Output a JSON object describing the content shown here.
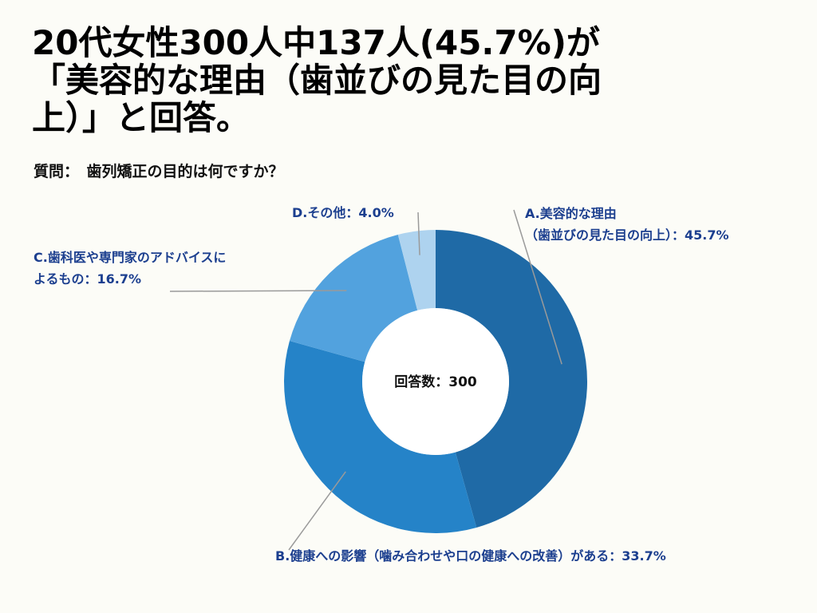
{
  "title_lines": [
    "20代女性300人中137人(45.7%)が",
    "「美容的な理由（歯並びの見た目の向",
    "上）」と回答。"
  ],
  "question": "質問：　歯列矯正の目的は何ですか？",
  "chart_data": {
    "type": "pie",
    "variant": "donut",
    "center_label": "回答数：300",
    "total": 300,
    "slices": [
      {
        "name": "A",
        "value": 45.7,
        "label_lines": [
          "A.美容的な理由",
          "（歯並びの見た目の向上）：45.7%"
        ],
        "color": "#1f6aa6"
      },
      {
        "name": "B",
        "value": 33.7,
        "label_lines": [
          "B.健康への影響（噛み合わせや口の健康への改善）がある：33.7%"
        ],
        "color": "#2583c8"
      },
      {
        "name": "C",
        "value": 16.7,
        "label_lines": [
          "C.歯科医や専門家のアドバイスに",
          "よるもの：16.7%"
        ],
        "color": "#52a2de"
      },
      {
        "name": "D",
        "value": 4.0,
        "label_lines": [
          "D.その他：4.0%"
        ],
        "color": "#aed3ef"
      }
    ]
  }
}
